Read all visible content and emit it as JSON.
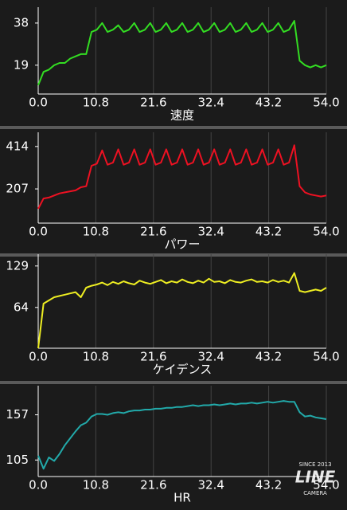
{
  "chart_data": [
    {
      "type": "line",
      "x_label": "速度",
      "color": "#33dd22",
      "x": [
        0,
        1,
        2,
        3,
        4,
        5,
        6,
        7,
        8,
        9,
        10,
        11,
        12,
        13,
        14,
        15,
        16,
        17,
        18,
        19,
        20,
        21,
        22,
        23,
        24,
        25,
        26,
        27,
        28,
        29,
        30,
        31,
        32,
        33,
        34,
        35,
        36,
        37,
        38,
        39,
        40,
        41,
        42,
        43,
        44,
        45,
        46,
        47,
        48,
        49,
        50,
        51,
        52,
        53,
        54
      ],
      "values": [
        10,
        16,
        17,
        19,
        20,
        20,
        22,
        23,
        24,
        24,
        34,
        35,
        38,
        34,
        35,
        37,
        34,
        35,
        38,
        34,
        35,
        38,
        34,
        35,
        38,
        34,
        35,
        38,
        34,
        35,
        38,
        34,
        35,
        38,
        34,
        35,
        38,
        34,
        35,
        38,
        34,
        35,
        38,
        34,
        35,
        38,
        34,
        35,
        39,
        21,
        19,
        18,
        19,
        18,
        19
      ],
      "xlim": [
        0,
        54
      ],
      "ylim": [
        6,
        43
      ],
      "xticks": [
        {
          "value": 0,
          "label": "0.0"
        },
        10.8,
        21.6,
        32.4,
        43.2,
        {
          "value": 54,
          "label": "54.0"
        }
      ],
      "yticks": [
        19,
        38
      ],
      "grid": true
    },
    {
      "type": "line",
      "x_label": "パワー",
      "color": "#ee1122",
      "x": [
        0,
        1,
        2,
        3,
        4,
        5,
        6,
        7,
        8,
        9,
        10,
        11,
        12,
        13,
        14,
        15,
        16,
        17,
        18,
        19,
        20,
        21,
        22,
        23,
        24,
        25,
        26,
        27,
        28,
        29,
        30,
        31,
        32,
        33,
        34,
        35,
        36,
        37,
        38,
        39,
        40,
        41,
        42,
        43,
        44,
        45,
        46,
        47,
        48,
        49,
        50,
        51,
        52,
        53,
        54
      ],
      "values": [
        110,
        160,
        165,
        175,
        185,
        190,
        195,
        200,
        215,
        220,
        320,
        330,
        395,
        325,
        335,
        400,
        325,
        335,
        400,
        325,
        335,
        400,
        325,
        335,
        400,
        325,
        335,
        400,
        325,
        335,
        400,
        325,
        335,
        400,
        325,
        335,
        400,
        325,
        335,
        400,
        325,
        335,
        400,
        325,
        335,
        400,
        325,
        335,
        420,
        220,
        190,
        180,
        175,
        170,
        175
      ],
      "xlim": [
        0,
        54
      ],
      "ylim": [
        40,
        460
      ],
      "xticks": [
        {
          "value": 0,
          "label": "0.0"
        },
        10.8,
        21.6,
        32.4,
        43.2,
        {
          "value": 54,
          "label": "54.0"
        }
      ],
      "yticks": [
        207,
        414
      ],
      "grid": true
    },
    {
      "type": "line",
      "x_label": "ケイデンス",
      "color": "#eeee22",
      "x": [
        0,
        1,
        2,
        3,
        4,
        5,
        6,
        7,
        8,
        9,
        10,
        11,
        12,
        13,
        14,
        15,
        16,
        17,
        18,
        19,
        20,
        21,
        22,
        23,
        24,
        25,
        26,
        27,
        28,
        29,
        30,
        31,
        32,
        33,
        34,
        35,
        36,
        37,
        38,
        39,
        40,
        41,
        42,
        43,
        44,
        45,
        46,
        47,
        48,
        49,
        50,
        51,
        52,
        53,
        54
      ],
      "values": [
        0,
        70,
        75,
        80,
        82,
        84,
        86,
        88,
        80,
        95,
        98,
        100,
        103,
        99,
        104,
        101,
        105,
        102,
        100,
        106,
        103,
        101,
        104,
        107,
        102,
        105,
        103,
        108,
        104,
        102,
        106,
        103,
        109,
        104,
        105,
        102,
        107,
        104,
        103,
        106,
        108,
        104,
        105,
        103,
        107,
        104,
        106,
        103,
        118,
        90,
        88,
        90,
        92,
        90,
        95
      ],
      "xlim": [
        0,
        54
      ],
      "ylim": [
        0,
        140
      ],
      "xticks": [
        {
          "value": 0,
          "label": "0.0"
        },
        10.8,
        21.6,
        32.4,
        43.2,
        {
          "value": 54,
          "label": "54.0"
        }
      ],
      "yticks": [
        64,
        129
      ],
      "grid": true
    },
    {
      "type": "line",
      "x_label": "HR",
      "color": "#22aaaa",
      "x": [
        0,
        1,
        2,
        3,
        4,
        5,
        6,
        7,
        8,
        9,
        10,
        11,
        12,
        13,
        14,
        15,
        16,
        17,
        18,
        19,
        20,
        21,
        22,
        23,
        24,
        25,
        26,
        27,
        28,
        29,
        30,
        31,
        32,
        33,
        34,
        35,
        36,
        37,
        38,
        39,
        40,
        41,
        42,
        43,
        44,
        45,
        46,
        47,
        48,
        49,
        50,
        51,
        52,
        53,
        54
      ],
      "values": [
        110,
        95,
        108,
        104,
        112,
        122,
        130,
        138,
        145,
        148,
        155,
        158,
        158,
        157,
        159,
        160,
        159,
        161,
        162,
        162,
        163,
        163,
        164,
        164,
        165,
        165,
        166,
        166,
        167,
        168,
        167,
        168,
        168,
        169,
        168,
        169,
        170,
        169,
        170,
        170,
        171,
        170,
        171,
        172,
        171,
        172,
        173,
        172,
        172,
        160,
        155,
        156,
        154,
        153,
        152
      ],
      "xlim": [
        0,
        54
      ],
      "ylim": [
        86,
        185
      ],
      "xticks": [
        {
          "value": 0,
          "label": "0.0"
        },
        10.8,
        21.6,
        32.4,
        43.2,
        {
          "value": 54,
          "label": "54.0"
        }
      ],
      "yticks": [
        105,
        157
      ],
      "grid": true
    }
  ],
  "watermark": {
    "top": "SINCE 2013",
    "main": "LINE",
    "bottom": "CAMERA"
  }
}
